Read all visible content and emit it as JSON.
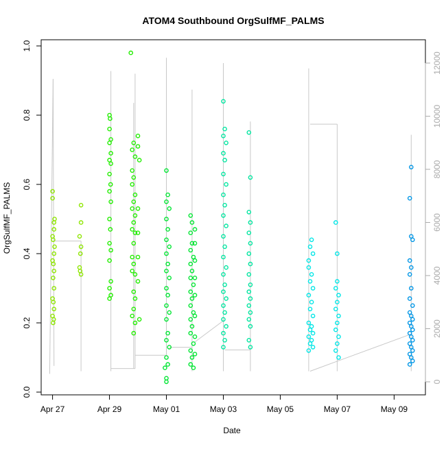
{
  "chart_data": {
    "type": "scatter",
    "title": "ATOM4 Southbound OrgSulfMF_PALMS",
    "xlabel": "Date",
    "ylabel": "OrgSulfMF_PALMS",
    "x_ticks": [
      "Apr 27",
      "Apr 29",
      "May 01",
      "May 03",
      "May 05",
      "May 07",
      "May 09"
    ],
    "x_tick_days": [
      0,
      2,
      4,
      6,
      8,
      10,
      12
    ],
    "xlim_days": [
      -0.4,
      13.1
    ],
    "ylim": [
      0,
      1.0
    ],
    "y_ticks": [
      "0.0",
      "0.2",
      "0.4",
      "0.6",
      "0.8",
      "1.0"
    ],
    "y_tick_values": [
      0.0,
      0.2,
      0.4,
      0.6,
      0.8,
      1.0
    ],
    "y2_label": "",
    "y2_ticks": [
      "0",
      "2000",
      "4000",
      "6000",
      "8000",
      "10000",
      "12000"
    ],
    "y2_tick_values": [
      0,
      2000,
      4000,
      6000,
      8000,
      10000,
      12000
    ],
    "y2lim": [
      0,
      12000
    ],
    "altitude_color": "#c8c8c8",
    "series": [
      {
        "color": "#8ee600",
        "points": [
          [
            0.0,
            0.56
          ],
          [
            0.0,
            0.58
          ],
          [
            0.05,
            0.49
          ],
          [
            0.05,
            0.47
          ],
          [
            0.0,
            0.45
          ],
          [
            0.02,
            0.44
          ],
          [
            0.05,
            0.4
          ],
          [
            0.0,
            0.38
          ],
          [
            0.03,
            0.37
          ],
          [
            0.05,
            0.35
          ],
          [
            0.02,
            0.33
          ],
          [
            0.05,
            0.3
          ],
          [
            0.0,
            0.27
          ],
          [
            0.03,
            0.26
          ],
          [
            0.05,
            0.24
          ],
          [
            0.0,
            0.22
          ],
          [
            0.04,
            0.21
          ],
          [
            0.02,
            0.2
          ],
          [
            0.07,
            0.5
          ],
          [
            0.07,
            0.42
          ],
          [
            1.0,
            0.54
          ],
          [
            1.0,
            0.49
          ],
          [
            0.95,
            0.45
          ],
          [
            1.0,
            0.42
          ],
          [
            0.98,
            0.4
          ],
          [
            0.95,
            0.36
          ],
          [
            1.0,
            0.34
          ],
          [
            0.97,
            0.35
          ]
        ]
      },
      {
        "color": "#22ee00",
        "points": [
          [
            2.0,
            0.8
          ],
          [
            2.02,
            0.79
          ],
          [
            2.0,
            0.76
          ],
          [
            2.05,
            0.73
          ],
          [
            2.0,
            0.72
          ],
          [
            2.05,
            0.69
          ],
          [
            2.0,
            0.67
          ],
          [
            2.05,
            0.66
          ],
          [
            2.0,
            0.63
          ],
          [
            2.04,
            0.6
          ],
          [
            2.0,
            0.58
          ],
          [
            2.05,
            0.55
          ],
          [
            2.0,
            0.5
          ],
          [
            2.03,
            0.47
          ],
          [
            2.0,
            0.43
          ],
          [
            2.05,
            0.41
          ],
          [
            2.0,
            0.38
          ],
          [
            2.05,
            0.32
          ],
          [
            2.0,
            0.3
          ],
          [
            2.05,
            0.28
          ],
          [
            2.0,
            0.27
          ],
          [
            2.75,
            0.98
          ],
          [
            2.85,
            0.72
          ],
          [
            2.8,
            0.7
          ],
          [
            2.9,
            0.68
          ],
          [
            2.8,
            0.64
          ],
          [
            2.85,
            0.62
          ],
          [
            2.8,
            0.6
          ],
          [
            2.9,
            0.57
          ],
          [
            2.85,
            0.55
          ],
          [
            2.8,
            0.53
          ],
          [
            2.9,
            0.51
          ],
          [
            2.85,
            0.49
          ],
          [
            2.8,
            0.47
          ],
          [
            2.9,
            0.46
          ],
          [
            2.85,
            0.43
          ],
          [
            2.8,
            0.39
          ],
          [
            2.85,
            0.37
          ],
          [
            2.8,
            0.35
          ],
          [
            2.9,
            0.34
          ],
          [
            2.85,
            0.29
          ],
          [
            2.9,
            0.27
          ],
          [
            2.85,
            0.24
          ],
          [
            2.8,
            0.22
          ],
          [
            2.9,
            0.2
          ],
          [
            2.85,
            0.17
          ],
          [
            3.0,
            0.74
          ],
          [
            3.0,
            0.71
          ],
          [
            3.05,
            0.67
          ],
          [
            3.0,
            0.53
          ],
          [
            3.0,
            0.46
          ],
          [
            3.0,
            0.39
          ],
          [
            3.0,
            0.32
          ],
          [
            3.05,
            0.21
          ]
        ]
      },
      {
        "color": "#00e632",
        "points": [
          [
            4.0,
            0.64
          ],
          [
            4.05,
            0.57
          ],
          [
            4.0,
            0.55
          ],
          [
            4.1,
            0.53
          ],
          [
            4.0,
            0.5
          ],
          [
            4.05,
            0.47
          ],
          [
            4.0,
            0.44
          ],
          [
            4.1,
            0.42
          ],
          [
            4.0,
            0.4
          ],
          [
            4.05,
            0.37
          ],
          [
            4.0,
            0.35
          ],
          [
            4.1,
            0.33
          ],
          [
            4.0,
            0.3
          ],
          [
            4.05,
            0.28
          ],
          [
            4.0,
            0.25
          ],
          [
            4.1,
            0.23
          ],
          [
            4.0,
            0.21
          ],
          [
            4.05,
            0.17
          ],
          [
            4.0,
            0.15
          ],
          [
            4.1,
            0.13
          ],
          [
            4.0,
            0.1
          ],
          [
            4.05,
            0.08
          ],
          [
            3.95,
            0.07
          ],
          [
            4.0,
            0.04
          ],
          [
            4.0,
            0.03
          ],
          [
            4.85,
            0.51
          ],
          [
            4.9,
            0.49
          ],
          [
            4.85,
            0.46
          ],
          [
            4.9,
            0.43
          ],
          [
            4.85,
            0.41
          ],
          [
            4.95,
            0.39
          ],
          [
            4.85,
            0.37
          ],
          [
            4.9,
            0.35
          ],
          [
            4.85,
            0.33
          ],
          [
            4.95,
            0.31
          ],
          [
            4.85,
            0.29
          ],
          [
            4.9,
            0.27
          ],
          [
            4.85,
            0.25
          ],
          [
            4.95,
            0.23
          ],
          [
            4.85,
            0.21
          ],
          [
            4.9,
            0.19
          ],
          [
            4.85,
            0.17
          ],
          [
            4.95,
            0.14
          ],
          [
            4.85,
            0.12
          ],
          [
            4.9,
            0.1
          ],
          [
            4.85,
            0.08
          ],
          [
            4.95,
            0.07
          ],
          [
            5.0,
            0.47
          ],
          [
            5.0,
            0.43
          ],
          [
            5.0,
            0.38
          ],
          [
            5.0,
            0.33
          ],
          [
            5.0,
            0.28
          ],
          [
            5.0,
            0.22
          ],
          [
            5.0,
            0.16
          ],
          [
            5.0,
            0.11
          ]
        ]
      },
      {
        "color": "#00e6a0",
        "points": [
          [
            6.0,
            0.84
          ],
          [
            6.05,
            0.76
          ],
          [
            6.0,
            0.74
          ],
          [
            6.1,
            0.72
          ],
          [
            6.0,
            0.69
          ],
          [
            6.05,
            0.67
          ],
          [
            6.0,
            0.63
          ],
          [
            6.1,
            0.6
          ],
          [
            6.0,
            0.57
          ],
          [
            6.05,
            0.54
          ],
          [
            6.0,
            0.51
          ],
          [
            6.1,
            0.48
          ],
          [
            6.0,
            0.45
          ],
          [
            6.05,
            0.42
          ],
          [
            6.0,
            0.39
          ],
          [
            6.1,
            0.36
          ],
          [
            6.0,
            0.34
          ],
          [
            6.05,
            0.31
          ],
          [
            6.0,
            0.29
          ],
          [
            6.1,
            0.27
          ],
          [
            6.0,
            0.25
          ],
          [
            6.05,
            0.23
          ],
          [
            6.0,
            0.21
          ],
          [
            6.1,
            0.19
          ],
          [
            6.0,
            0.17
          ],
          [
            6.05,
            0.15
          ],
          [
            6.0,
            0.13
          ],
          [
            6.9,
            0.75
          ],
          [
            6.95,
            0.62
          ],
          [
            6.9,
            0.52
          ],
          [
            6.95,
            0.49
          ],
          [
            6.9,
            0.46
          ],
          [
            6.95,
            0.43
          ],
          [
            6.9,
            0.4
          ],
          [
            6.95,
            0.37
          ],
          [
            6.9,
            0.34
          ],
          [
            6.95,
            0.31
          ],
          [
            6.9,
            0.29
          ],
          [
            6.95,
            0.27
          ],
          [
            6.9,
            0.25
          ],
          [
            6.95,
            0.23
          ],
          [
            6.9,
            0.21
          ],
          [
            6.95,
            0.19
          ],
          [
            6.9,
            0.15
          ],
          [
            6.95,
            0.13
          ]
        ]
      },
      {
        "color": "#00e6e6",
        "points": [
          [
            9.0,
            0.38
          ],
          [
            9.1,
            0.44
          ],
          [
            9.05,
            0.42
          ],
          [
            9.15,
            0.4
          ],
          [
            9.0,
            0.36
          ],
          [
            9.1,
            0.34
          ],
          [
            9.05,
            0.32
          ],
          [
            9.15,
            0.3
          ],
          [
            9.0,
            0.28
          ],
          [
            9.1,
            0.26
          ],
          [
            9.05,
            0.24
          ],
          [
            9.15,
            0.22
          ],
          [
            9.0,
            0.2
          ],
          [
            9.1,
            0.19
          ],
          [
            9.05,
            0.18
          ],
          [
            9.15,
            0.17
          ],
          [
            9.0,
            0.16
          ],
          [
            9.1,
            0.15
          ],
          [
            9.05,
            0.14
          ],
          [
            9.15,
            0.13
          ],
          [
            9.0,
            0.12
          ],
          [
            9.95,
            0.49
          ],
          [
            10.0,
            0.4
          ],
          [
            10.0,
            0.32
          ],
          [
            9.95,
            0.3
          ],
          [
            10.05,
            0.28
          ],
          [
            10.0,
            0.26
          ],
          [
            9.95,
            0.24
          ],
          [
            10.05,
            0.22
          ],
          [
            10.0,
            0.2
          ],
          [
            9.95,
            0.18
          ],
          [
            10.05,
            0.16
          ],
          [
            10.0,
            0.14
          ],
          [
            9.95,
            0.12
          ],
          [
            10.05,
            0.1
          ]
        ]
      },
      {
        "color": "#0096e6",
        "points": [
          [
            12.6,
            0.65
          ],
          [
            12.55,
            0.56
          ],
          [
            12.6,
            0.45
          ],
          [
            12.65,
            0.44
          ],
          [
            12.55,
            0.38
          ],
          [
            12.6,
            0.36
          ],
          [
            12.55,
            0.34
          ],
          [
            12.6,
            0.3
          ],
          [
            12.55,
            0.27
          ],
          [
            12.65,
            0.25
          ],
          [
            12.55,
            0.23
          ],
          [
            12.6,
            0.22
          ],
          [
            12.65,
            0.21
          ],
          [
            12.55,
            0.2
          ],
          [
            12.6,
            0.19
          ],
          [
            12.65,
            0.18
          ],
          [
            12.55,
            0.17
          ],
          [
            12.6,
            0.16
          ],
          [
            12.65,
            0.15
          ],
          [
            12.55,
            0.14
          ],
          [
            12.6,
            0.13
          ],
          [
            12.65,
            0.12
          ],
          [
            12.55,
            0.11
          ],
          [
            12.6,
            0.1
          ],
          [
            12.65,
            0.09
          ],
          [
            12.55,
            0.08
          ]
        ]
      }
    ],
    "altitude_legs": [
      {
        "x": [
          -0.1,
          0.02
        ],
        "alt": [
          300,
          11400
        ]
      },
      {
        "x": [
          0.02,
          0.05
        ],
        "alt": [
          11400,
          600
        ]
      },
      {
        "x": [
          0.05,
          1.0
        ],
        "alt": [
          5300,
          5300
        ]
      },
      {
        "x": [
          1.0,
          1.0
        ],
        "alt": [
          5300,
          400
        ]
      },
      {
        "x": [
          2.05,
          2.05
        ],
        "alt": [
          400,
          11700
        ]
      },
      {
        "x": [
          2.05,
          2.9
        ],
        "alt": [
          500,
          500
        ]
      },
      {
        "x": [
          2.85,
          2.85
        ],
        "alt": [
          500,
          10500
        ]
      },
      {
        "x": [
          2.9,
          2.9
        ],
        "alt": [
          500,
          11600
        ]
      },
      {
        "x": [
          2.9,
          4.0
        ],
        "alt": [
          1000,
          1000
        ]
      },
      {
        "x": [
          4.0,
          4.0
        ],
        "alt": [
          1000,
          12200
        ]
      },
      {
        "x": [
          4.1,
          4.9
        ],
        "alt": [
          1300,
          1300
        ]
      },
      {
        "x": [
          4.9,
          4.9
        ],
        "alt": [
          400,
          11000
        ]
      },
      {
        "x": [
          5.0,
          6.0
        ],
        "alt": [
          1500,
          2300
        ]
      },
      {
        "x": [
          6.0,
          6.0
        ],
        "alt": [
          400,
          12000
        ]
      },
      {
        "x": [
          6.05,
          6.95
        ],
        "alt": [
          1200,
          1200
        ]
      },
      {
        "x": [
          6.95,
          6.95
        ],
        "alt": [
          400,
          9800
        ]
      },
      {
        "x": [
          9.0,
          9.0
        ],
        "alt": [
          400,
          11800
        ]
      },
      {
        "x": [
          9.05,
          10.0
        ],
        "alt": [
          9700,
          9700
        ]
      },
      {
        "x": [
          10.0,
          10.0
        ],
        "alt": [
          400,
          9700
        ]
      },
      {
        "x": [
          9.05,
          12.6
        ],
        "alt": [
          400,
          1800
        ]
      },
      {
        "x": [
          12.6,
          12.6
        ],
        "alt": [
          400,
          9300
        ]
      }
    ]
  }
}
